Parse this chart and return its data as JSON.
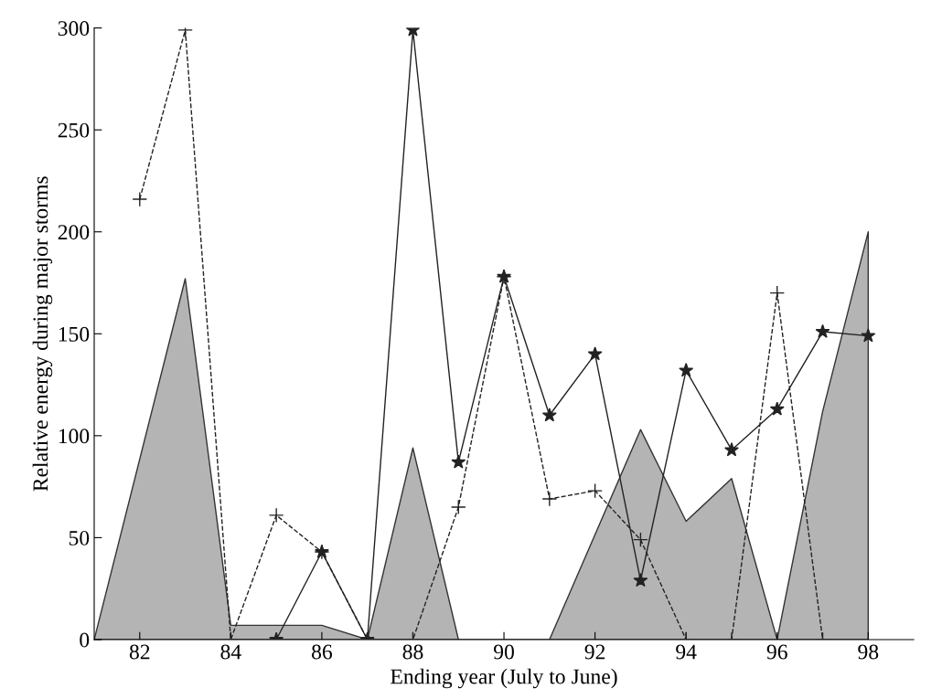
{
  "chart_data": {
    "type": "line",
    "xlabel": "Ending year (July to June)",
    "ylabel": "Relative energy during major storms",
    "xlim": [
      81,
      99
    ],
    "xticks": [
      82,
      84,
      86,
      88,
      90,
      92,
      94,
      96,
      98
    ],
    "ylim": [
      0,
      300
    ],
    "yticks": [
      0,
      50,
      100,
      150,
      200,
      250,
      300
    ],
    "grid": false,
    "legend": false,
    "series": [
      {
        "type": "area",
        "color": "#b4b4b4",
        "x": [
          81,
          83,
          84,
          86,
          87,
          88,
          89,
          91,
          93,
          94,
          95,
          96,
          97,
          98,
          98
        ],
        "values": [
          0,
          177,
          7,
          7,
          0,
          94,
          0,
          0,
          103,
          58,
          79,
          0,
          112,
          200,
          0
        ]
      },
      {
        "color": "#222222",
        "marker": "star",
        "line_style": "solid",
        "x": [
          85,
          86,
          87,
          88,
          89,
          90,
          91,
          92,
          93,
          94,
          95,
          96,
          97,
          98
        ],
        "values": [
          0,
          43,
          0,
          299,
          87,
          178,
          110,
          140,
          29,
          132,
          93,
          113,
          151,
          149
        ]
      },
      {
        "color": "#222222",
        "marker": "cross",
        "line_style": "dashed",
        "x": [
          82,
          83,
          84,
          85,
          86,
          87,
          88,
          89,
          90,
          91,
          92,
          93,
          94,
          95,
          96,
          97
        ],
        "values": [
          216,
          299,
          0,
          61,
          43,
          0,
          0,
          65,
          178,
          69,
          73,
          49,
          0,
          0,
          170,
          0
        ]
      }
    ]
  }
}
